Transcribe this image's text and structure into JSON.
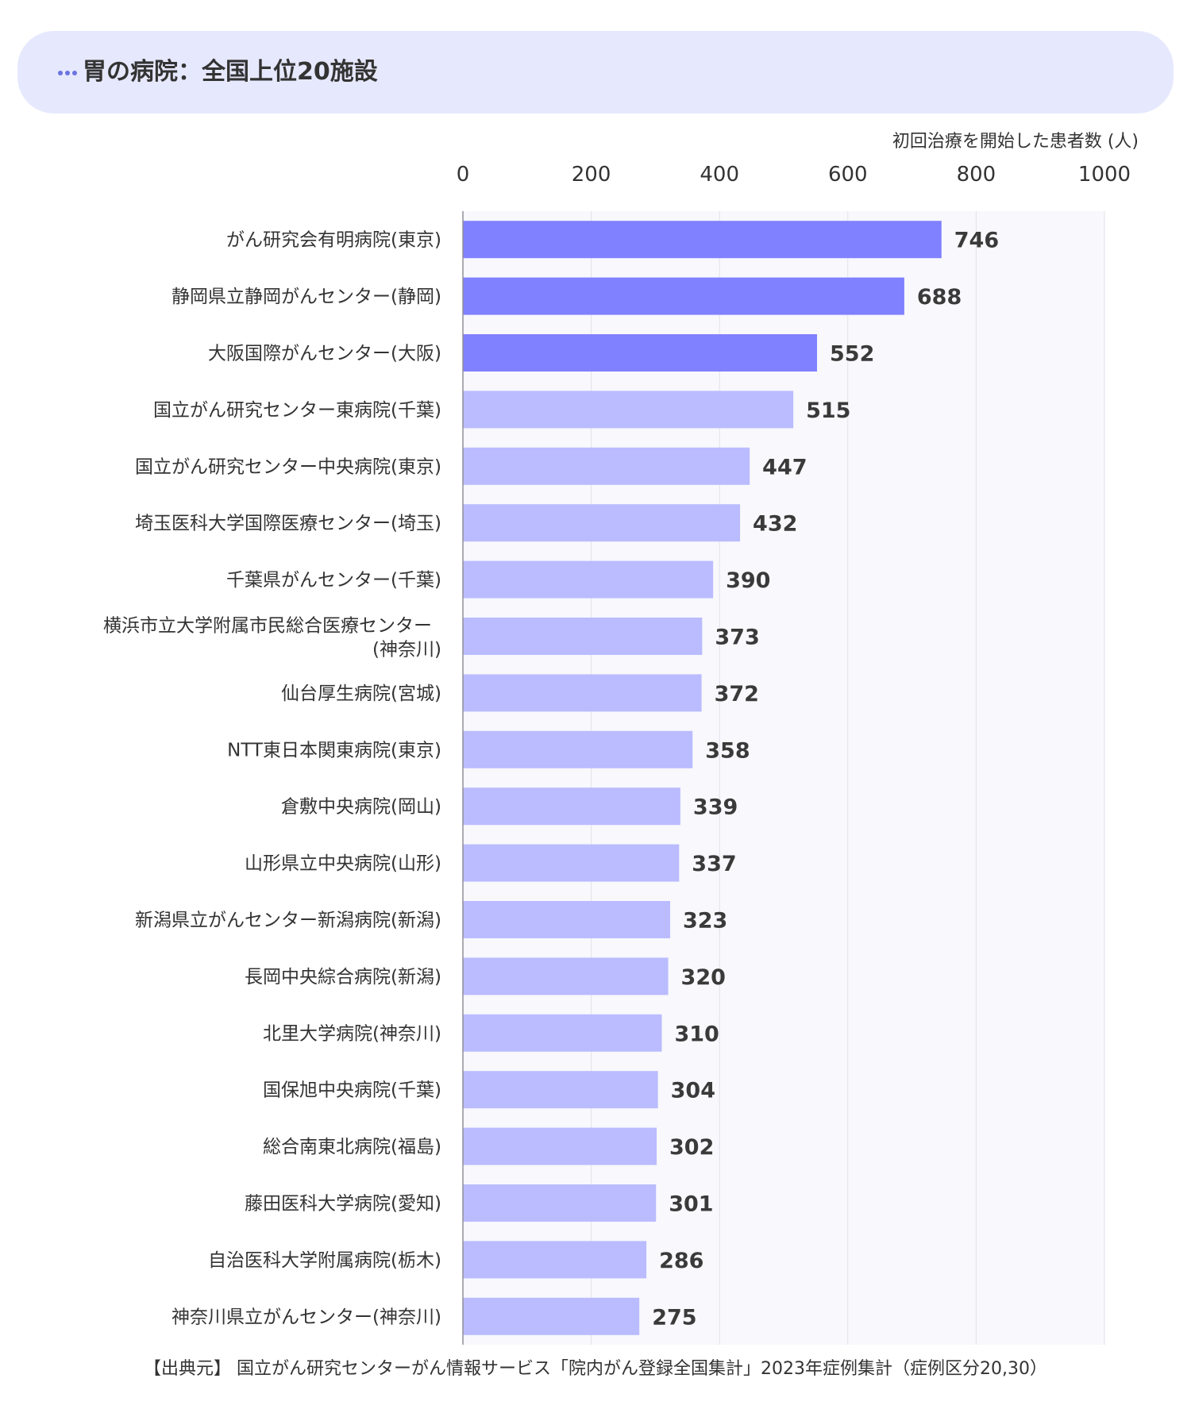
{
  "header": {
    "title": "胃の病院：全国上位20施設",
    "icon": "ellipsis-icon",
    "accent_color": "#6b72e0",
    "background_color": "#e6e8fd"
  },
  "source": "【出典元】 国立がん研究センターがん情報サービス「院内がん登録全国集計」2023年症例集計（症例区分20,30）",
  "chart_data": {
    "type": "bar",
    "orientation": "horizontal",
    "xlabel": "初回治療を開始した患者数 (人)",
    "ylabel": "",
    "xlim": [
      0,
      1000
    ],
    "xticks": [
      0,
      200,
      400,
      600,
      800,
      1000
    ],
    "grid": true,
    "highlight_color": "#8081ff",
    "bar_color": "#babcff",
    "plot_background": "#f8f8fd",
    "highlight_top_n": 3,
    "categories": [
      "がん研究会有明病院(東京)",
      "静岡県立静岡がんセンター(静岡)",
      "大阪国際がんセンター(大阪)",
      "国立がん研究センター東病院(千葉)",
      "国立がん研究センター中央病院(東京)",
      "埼玉医科大学国際医療センター(埼玉)",
      "千葉県がんセンター(千葉)",
      "横浜市立大学附属市民総合医療センター\n(神奈川)",
      "仙台厚生病院(宮城)",
      "NTT東日本関東病院(東京)",
      "倉敷中央病院(岡山)",
      "山形県立中央病院(山形)",
      "新潟県立がんセンター新潟病院(新潟)",
      "長岡中央綜合病院(新潟)",
      "北里大学病院(神奈川)",
      "国保旭中央病院(千葉)",
      "総合南東北病院(福島)",
      "藤田医科大学病院(愛知)",
      "自治医科大学附属病院(栃木)",
      "神奈川県立がんセンター(神奈川)"
    ],
    "values": [
      746,
      688,
      552,
      515,
      447,
      432,
      390,
      373,
      372,
      358,
      339,
      337,
      323,
      320,
      310,
      304,
      302,
      301,
      286,
      275
    ]
  }
}
